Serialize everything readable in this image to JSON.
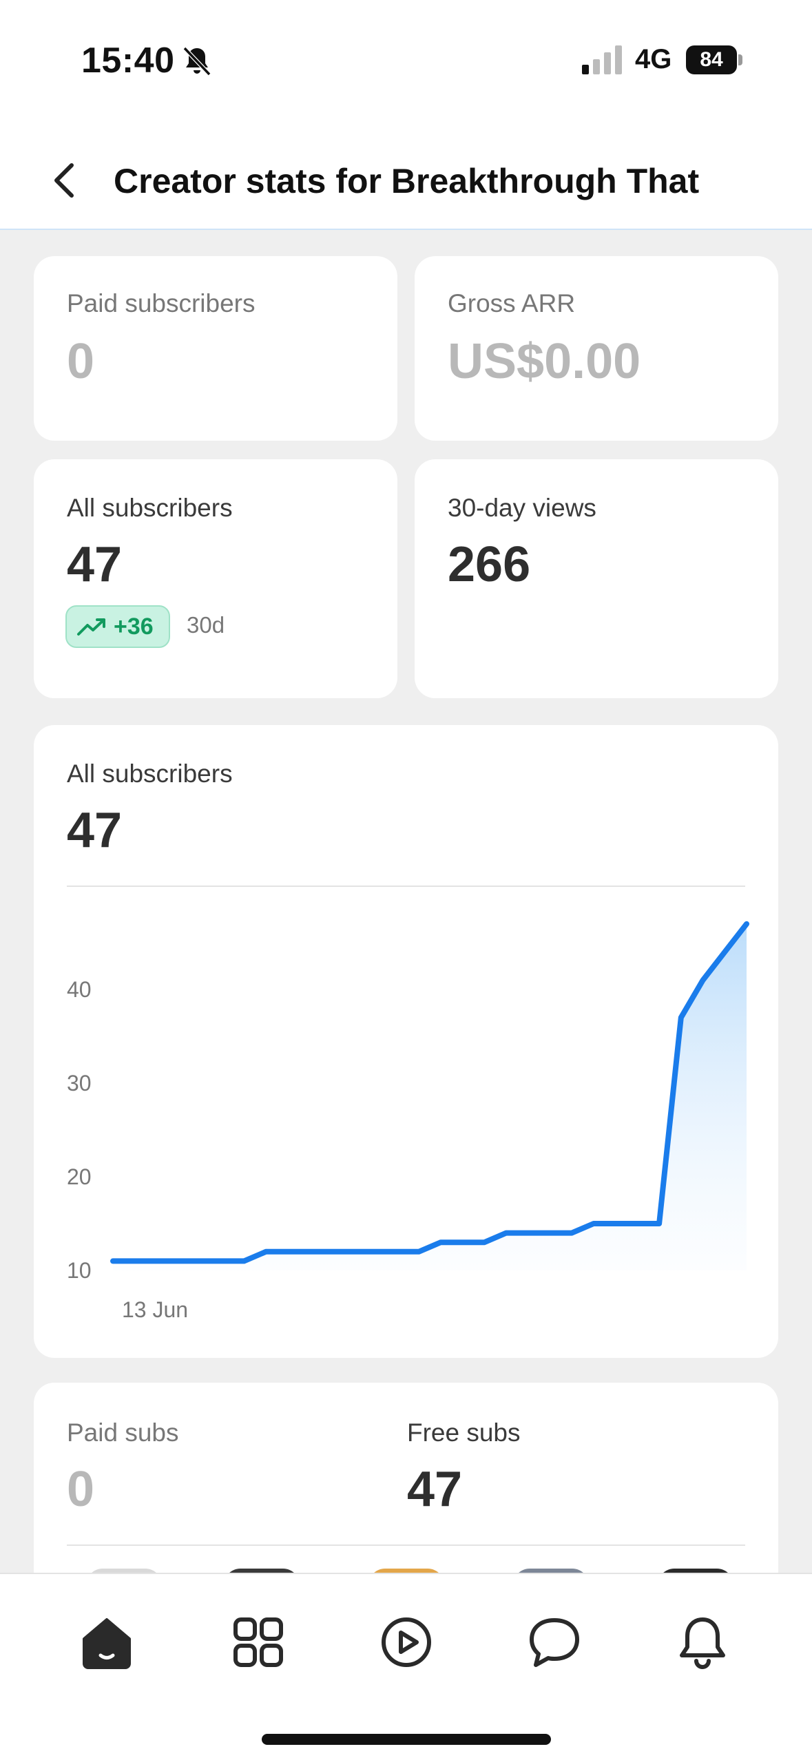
{
  "status_bar": {
    "time": "15:40",
    "network": "4G",
    "battery": "84"
  },
  "header": {
    "title": "Creator stats for Breakthrough That"
  },
  "stats": {
    "paid_subscribers": {
      "label": "Paid subscribers",
      "value": "0"
    },
    "gross_arr": {
      "label": "Gross ARR",
      "value": "US$0.00"
    },
    "all_subscribers": {
      "label": "All subscribers",
      "value": "47",
      "trend": "+36",
      "trend_period": "30d"
    },
    "views_30d": {
      "label": "30-day views",
      "value": "266"
    }
  },
  "subscriber_chart": {
    "label": "All subscribers",
    "value": "47"
  },
  "chart_data": {
    "type": "area",
    "title": "",
    "xlabel": "",
    "ylabel": "",
    "x_tick_labels": [
      "13 Jun"
    ],
    "y_ticks": [
      10,
      20,
      30,
      40
    ],
    "ylim": [
      10,
      50
    ],
    "grid": false,
    "legend": "none",
    "series": [
      {
        "values": [
          11,
          11,
          11,
          11,
          11,
          11,
          11,
          12,
          12,
          12,
          12,
          12,
          12,
          12,
          12,
          13,
          13,
          13,
          14,
          14,
          14,
          14,
          15,
          15,
          15,
          15,
          37,
          41,
          44,
          47
        ]
      }
    ],
    "line_color": "#1a7ceb",
    "fill_color": "#c9e3fb"
  },
  "subs_breakdown": {
    "paid": {
      "label": "Paid subs",
      "value": "0"
    },
    "free": {
      "label": "Free subs",
      "value": "47"
    }
  },
  "bottom_nav": {
    "items": [
      {
        "icon": "home-icon",
        "active": true
      },
      {
        "icon": "grid-icon",
        "active": false
      },
      {
        "icon": "play-icon",
        "active": false
      },
      {
        "icon": "chat-icon",
        "active": false
      },
      {
        "icon": "bell-icon",
        "active": false
      }
    ]
  },
  "colors": {
    "accent": "#1a7ceb",
    "trend_bg": "#c9f2e2",
    "trend_text": "#129a5e"
  }
}
